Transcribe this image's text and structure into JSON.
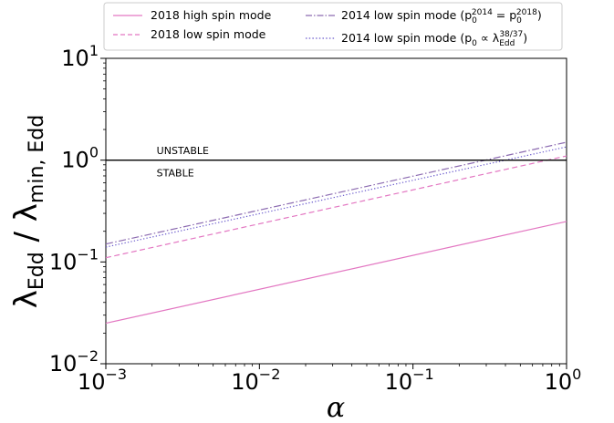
{
  "chart_data": {
    "type": "line",
    "xscale": "log",
    "yscale": "log",
    "xlim": [
      0.001,
      1
    ],
    "ylim": [
      0.01,
      10
    ],
    "xlabel": "α",
    "ylabel": {
      "main": "λ",
      "sub1": "Edd",
      "sep": " / ",
      "main2": "λ",
      "sub2": "min, Edd"
    },
    "xticks": [
      {
        "value": 0.001,
        "base": "10",
        "exp": "−3"
      },
      {
        "value": 0.01,
        "base": "10",
        "exp": "−2"
      },
      {
        "value": 0.1,
        "base": "10",
        "exp": "−1"
      },
      {
        "value": 1,
        "base": "10",
        "exp": "0"
      }
    ],
    "yticks": [
      {
        "value": 0.01,
        "base": "10",
        "exp": "−2"
      },
      {
        "value": 0.1,
        "base": "10",
        "exp": "−1"
      },
      {
        "value": 1,
        "base": "10",
        "exp": "0"
      },
      {
        "value": 10,
        "base": "10",
        "exp": "1"
      }
    ],
    "grid": false,
    "legend_position": "top",
    "series": [
      {
        "key": "high2018",
        "name": "2018 high spin mode",
        "color": "#e377c2",
        "dash": "solid",
        "x": [
          0.001,
          1
        ],
        "y": [
          0.025,
          0.25
        ]
      },
      {
        "key": "low2018",
        "name": "2018 low spin mode",
        "color": "#e377c2",
        "dash": "dashed",
        "x": [
          0.001,
          1
        ],
        "y": [
          0.11,
          1.1
        ]
      },
      {
        "key": "low2014a",
        "name": "2014 low spin mode",
        "color": "#8c6bb1",
        "dash": "dashdot",
        "x": [
          0.001,
          1
        ],
        "y": [
          0.15,
          1.5
        ]
      },
      {
        "key": "low2014b",
        "name": "2014 low spin mode",
        "color": "#6a5acd",
        "dash": "dotted",
        "x": [
          0.001,
          1
        ],
        "y": [
          0.14,
          1.35
        ]
      }
    ],
    "hline": {
      "y": 1,
      "color": "#000000"
    },
    "annotations": [
      {
        "text": "UNSTABLE",
        "x": 0.002,
        "y": 1.25
      },
      {
        "text": "STABLE",
        "x": 0.002,
        "y": 0.75
      }
    ]
  }
}
